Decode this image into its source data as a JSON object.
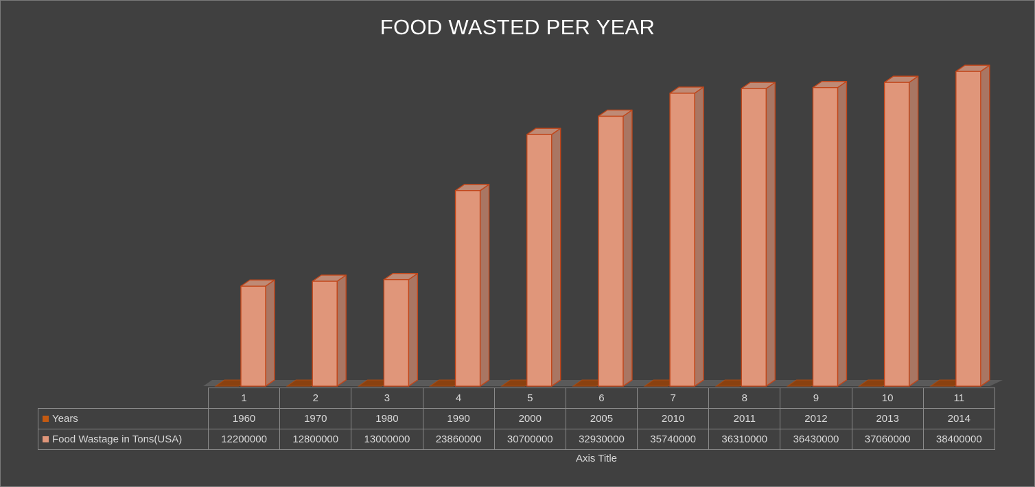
{
  "chart_data": {
    "type": "bar",
    "title": "FOOD WASTED PER YEAR",
    "xlabel": "Axis Title",
    "categories": [
      "1",
      "2",
      "3",
      "4",
      "5",
      "6",
      "7",
      "8",
      "9",
      "10",
      "11"
    ],
    "series": [
      {
        "name": "Years",
        "values": [
          1960,
          1970,
          1980,
          1990,
          2000,
          2005,
          2010,
          2011,
          2012,
          2013,
          2014
        ],
        "color": "#c55a11"
      },
      {
        "name": "Food Wastage in Tons(USA)",
        "values": [
          12200000,
          12800000,
          13000000,
          23860000,
          30700000,
          32930000,
          35740000,
          36310000,
          36430000,
          37060000,
          38400000
        ],
        "color": "#e0967a"
      }
    ],
    "ylim": [
      0,
      40000000
    ],
    "grid": false,
    "legend": "data-table",
    "style": "3d-column"
  }
}
